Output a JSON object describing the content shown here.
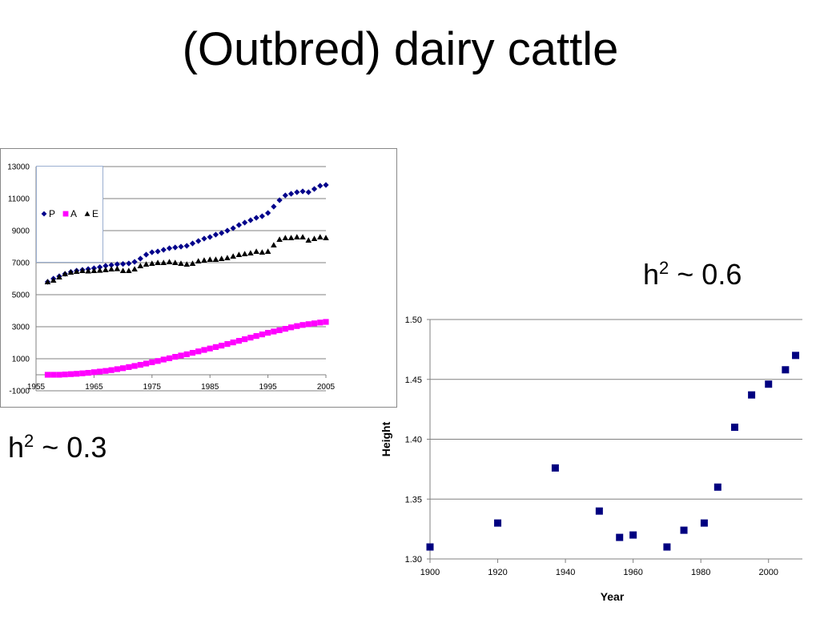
{
  "slide": {
    "title": "(Outbred) dairy cattle",
    "h2_left": {
      "base": "h",
      "exp": "2",
      "rest": " ~ 0.3"
    },
    "h2_right": {
      "base": "h",
      "exp": "2",
      "rest": " ~ 0.6"
    }
  },
  "chart_data": [
    {
      "type": "scatter",
      "xlim": [
        1955,
        2005
      ],
      "ylim": [
        -1000,
        13000
      ],
      "x_ticks": [
        1955,
        1965,
        1975,
        1985,
        1995,
        2005
      ],
      "y_ticks": [
        13000,
        11000,
        9000,
        7000,
        5000,
        3000,
        1000,
        -1000
      ],
      "grid": "horizontal",
      "legend_position": "top-left",
      "series": [
        {
          "name": "P",
          "marker": "diamond",
          "color": "#00008b",
          "x": [
            1957,
            1958,
            1959,
            1960,
            1961,
            1962,
            1963,
            1964,
            1965,
            1966,
            1967,
            1968,
            1969,
            1970,
            1971,
            1972,
            1973,
            1974,
            1975,
            1976,
            1977,
            1978,
            1979,
            1980,
            1981,
            1982,
            1983,
            1984,
            1985,
            1986,
            1987,
            1988,
            1989,
            1990,
            1991,
            1992,
            1993,
            1994,
            1995,
            1996,
            1997,
            1998,
            1999,
            2000,
            2001,
            2002,
            2003,
            2004,
            2005
          ],
          "y": [
            5800,
            6000,
            6150,
            6300,
            6420,
            6500,
            6550,
            6600,
            6650,
            6720,
            6800,
            6850,
            6900,
            6920,
            6950,
            7050,
            7250,
            7500,
            7650,
            7700,
            7800,
            7900,
            7950,
            8000,
            8050,
            8200,
            8350,
            8500,
            8600,
            8750,
            8850,
            9000,
            9150,
            9350,
            9500,
            9650,
            9800,
            9900,
            10100,
            10500,
            10900,
            11200,
            11300,
            11400,
            11450,
            11400,
            11600,
            11800,
            11850
          ]
        },
        {
          "name": "A",
          "marker": "square",
          "color": "#ff00ff",
          "x": [
            1957,
            1958,
            1959,
            1960,
            1961,
            1962,
            1963,
            1964,
            1965,
            1966,
            1967,
            1968,
            1969,
            1970,
            1971,
            1972,
            1973,
            1974,
            1975,
            1976,
            1977,
            1978,
            1979,
            1980,
            1981,
            1982,
            1983,
            1984,
            1985,
            1986,
            1987,
            1988,
            1989,
            1990,
            1991,
            1992,
            1993,
            1994,
            1995,
            1996,
            1997,
            1998,
            1999,
            2000,
            2001,
            2002,
            2003,
            2004,
            2005
          ],
          "y": [
            0,
            0,
            0,
            20,
            40,
            60,
            90,
            120,
            160,
            200,
            240,
            290,
            350,
            410,
            480,
            550,
            620,
            700,
            780,
            860,
            950,
            1030,
            1120,
            1200,
            1280,
            1370,
            1460,
            1550,
            1640,
            1730,
            1820,
            1920,
            2020,
            2120,
            2220,
            2320,
            2420,
            2520,
            2620,
            2700,
            2780,
            2870,
            2960,
            3040,
            3110,
            3160,
            3210,
            3260,
            3300
          ]
        },
        {
          "name": "E",
          "marker": "triangle",
          "color": "#000000",
          "x": [
            1957,
            1958,
            1959,
            1960,
            1961,
            1962,
            1963,
            1964,
            1965,
            1966,
            1967,
            1968,
            1969,
            1970,
            1971,
            1972,
            1973,
            1974,
            1975,
            1976,
            1977,
            1978,
            1979,
            1980,
            1981,
            1982,
            1983,
            1984,
            1985,
            1986,
            1987,
            1988,
            1989,
            1990,
            1991,
            1992,
            1993,
            1994,
            1995,
            1996,
            1997,
            1998,
            1999,
            2000,
            2001,
            2002,
            2003,
            2004,
            2005
          ],
          "y": [
            5800,
            5900,
            6100,
            6300,
            6400,
            6450,
            6500,
            6480,
            6500,
            6520,
            6560,
            6600,
            6620,
            6500,
            6500,
            6600,
            6800,
            6900,
            6950,
            7000,
            7000,
            7050,
            7000,
            6950,
            6900,
            6950,
            7100,
            7150,
            7200,
            7200,
            7250,
            7300,
            7400,
            7500,
            7550,
            7600,
            7700,
            7650,
            7700,
            8100,
            8450,
            8550,
            8550,
            8600,
            8600,
            8400,
            8500,
            8600,
            8550
          ]
        }
      ]
    },
    {
      "type": "scatter",
      "xlabel": "Year",
      "ylabel": "Height",
      "xlim": [
        1900,
        2010
      ],
      "ylim": [
        1.3,
        1.5
      ],
      "x_ticks": [
        1900,
        1920,
        1940,
        1960,
        1980,
        2000
      ],
      "y_ticks": [
        "1.50",
        "1.45",
        "1.40",
        "1.35",
        "1.30"
      ],
      "grid": "horizontal",
      "series": [
        {
          "marker": "square",
          "color": "#000080",
          "x": [
            1900,
            1920,
            1937,
            1950,
            1956,
            1960,
            1970,
            1975,
            1981,
            1985,
            1990,
            1995,
            2000,
            2005,
            2008
          ],
          "y": [
            1.31,
            1.33,
            1.376,
            1.34,
            1.318,
            1.32,
            1.31,
            1.324,
            1.33,
            1.36,
            1.41,
            1.437,
            1.446,
            1.458,
            1.47
          ]
        }
      ]
    }
  ]
}
